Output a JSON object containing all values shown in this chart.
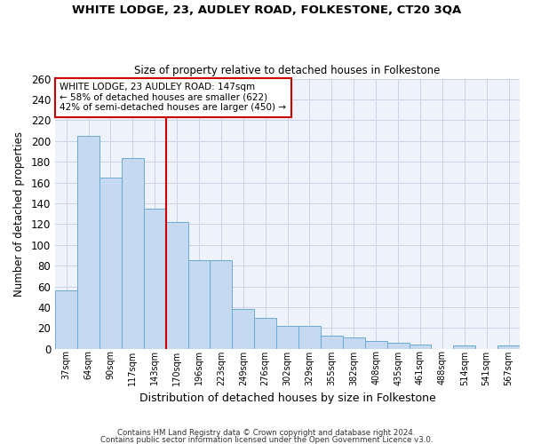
{
  "title": "WHITE LODGE, 23, AUDLEY ROAD, FOLKESTONE, CT20 3QA",
  "subtitle": "Size of property relative to detached houses in Folkestone",
  "xlabel": "Distribution of detached houses by size in Folkestone",
  "ylabel": "Number of detached properties",
  "footnote1": "Contains HM Land Registry data © Crown copyright and database right 2024.",
  "footnote2": "Contains public sector information licensed under the Open Government Licence v3.0.",
  "categories": [
    "37sqm",
    "64sqm",
    "90sqm",
    "117sqm",
    "143sqm",
    "170sqm",
    "196sqm",
    "223sqm",
    "249sqm",
    "276sqm",
    "302sqm",
    "329sqm",
    "355sqm",
    "382sqm",
    "408sqm",
    "435sqm",
    "461sqm",
    "488sqm",
    "514sqm",
    "541sqm",
    "567sqm"
  ],
  "values": [
    56,
    205,
    165,
    184,
    135,
    122,
    85,
    85,
    38,
    30,
    22,
    22,
    13,
    11,
    8,
    6,
    4,
    0,
    3,
    0,
    3
  ],
  "bar_color": "#c5d9f0",
  "bar_edge_color": "#6aaad4",
  "vline_x": 4.5,
  "vline_color": "#cc0000",
  "annotation_title": "WHITE LODGE, 23 AUDLEY ROAD: 147sqm",
  "annotation_line2": "← 58% of detached houses are smaller (622)",
  "annotation_line3": "42% of semi-detached houses are larger (450) →",
  "annotation_box_color": "#cc0000",
  "ylim": [
    0,
    260
  ],
  "yticks": [
    0,
    20,
    40,
    60,
    80,
    100,
    120,
    140,
    160,
    180,
    200,
    220,
    240,
    260
  ],
  "grid_color": "#c8d4e8",
  "bg_color": "#eef2fa"
}
